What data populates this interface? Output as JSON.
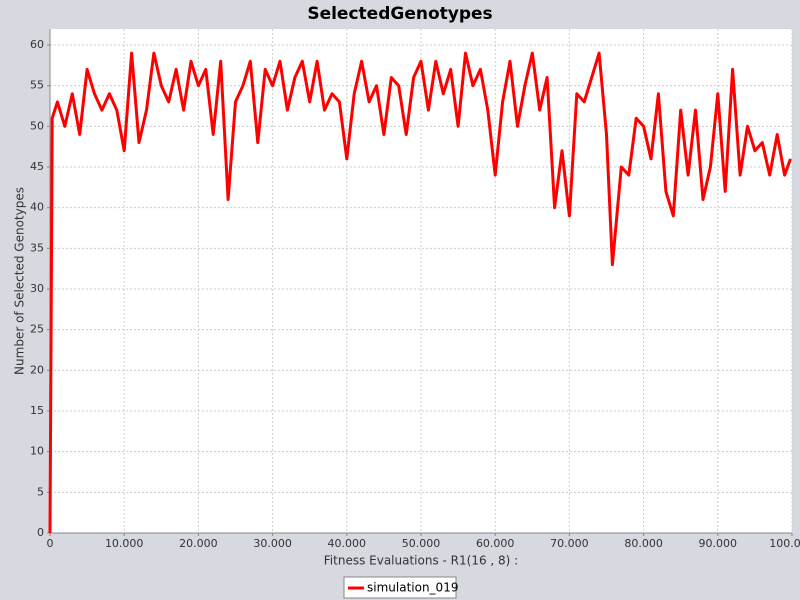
{
  "chart_data": {
    "type": "line",
    "title": "SelectedGenotypes",
    "x_label": "Fitness Evaluations - R1(16 , 8) :",
    "y_label": "Number of Selected Genotypes",
    "x": [
      0,
      300,
      1000,
      2000,
      3000,
      4000,
      5000,
      6000,
      7000,
      8000,
      9000,
      10000,
      11000,
      12000,
      13000,
      14000,
      15000,
      16000,
      17000,
      18000,
      19000,
      20000,
      21000,
      22000,
      23000,
      24000,
      25000,
      26000,
      27000,
      28000,
      29000,
      30000,
      31000,
      32000,
      33000,
      34000,
      35000,
      36000,
      37000,
      38000,
      39000,
      40000,
      41000,
      42000,
      43000,
      44000,
      45000,
      46000,
      47000,
      48000,
      49000,
      50000,
      51000,
      52000,
      53000,
      54000,
      55000,
      56000,
      57000,
      58000,
      59000,
      60000,
      61000,
      62000,
      63000,
      64000,
      65000,
      66000,
      67000,
      68000,
      69000,
      70000,
      71000,
      72000,
      73000,
      74000,
      75000,
      75800,
      77000,
      78000,
      79000,
      80000,
      81000,
      82000,
      83000,
      84000,
      85000,
      86000,
      87000,
      88000,
      89000,
      90000,
      91000,
      92000,
      93000,
      94000,
      95000,
      96000,
      97000,
      98000,
      99000,
      99800
    ],
    "series": [
      {
        "name": "simulation_019",
        "color": "#ff0000",
        "values": [
          0,
          51,
          53,
          50,
          54,
          49,
          57,
          54,
          52,
          54,
          52,
          47,
          59,
          48,
          52,
          59,
          55,
          53,
          57,
          52,
          58,
          55,
          57,
          49,
          58,
          41,
          53,
          55,
          58,
          48,
          57,
          55,
          58,
          52,
          56,
          58,
          53,
          58,
          52,
          54,
          53,
          46,
          54,
          58,
          53,
          55,
          49,
          56,
          55,
          49,
          56,
          58,
          52,
          58,
          54,
          57,
          50,
          59,
          55,
          57,
          52,
          44,
          53,
          58,
          50,
          55,
          59,
          52,
          56,
          40,
          47,
          39,
          54,
          53,
          56,
          59,
          49,
          33,
          45,
          44,
          51,
          50,
          46,
          54,
          42,
          39,
          52,
          44,
          52,
          41,
          45,
          54,
          42,
          57,
          44,
          50,
          47,
          48,
          44,
          49,
          44,
          46
        ]
      }
    ],
    "xlim": [
      0,
      100000
    ],
    "ylim": [
      0,
      60
    ],
    "xticks": [
      0,
      {
        "value": 10000,
        "label": "10.000"
      },
      {
        "value": 20000,
        "label": "20.000"
      },
      {
        "value": 30000,
        "label": "30.000"
      },
      {
        "value": 40000,
        "label": "40.000"
      },
      {
        "value": 50000,
        "label": "50.000"
      },
      {
        "value": 60000,
        "label": "60.000"
      },
      {
        "value": 70000,
        "label": "70.000"
      },
      {
        "value": 80000,
        "label": "80.000"
      },
      {
        "value": 90000,
        "label": "90.000"
      },
      {
        "value": 100000,
        "label": "100.000"
      }
    ],
    "yticks": [
      0,
      5,
      10,
      15,
      20,
      25,
      30,
      35,
      40,
      45,
      50,
      55,
      60
    ],
    "grid": true
  }
}
